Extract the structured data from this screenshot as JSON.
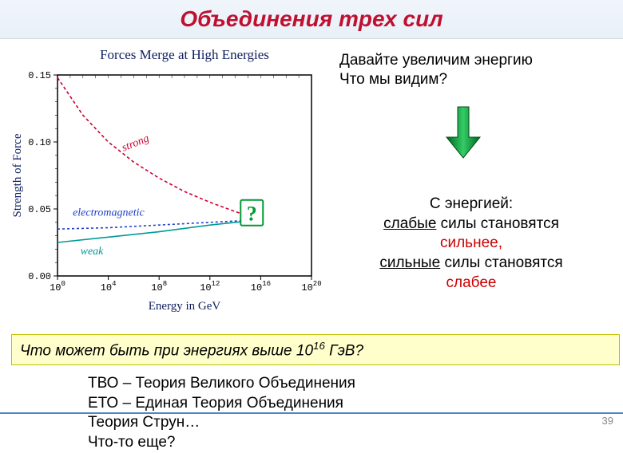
{
  "slide": {
    "title": "Объединения трех сил",
    "number": "39"
  },
  "chart": {
    "title": "Forces Merge at High Energies",
    "title_fontsize": 17,
    "title_color": "#102060",
    "ylabel": "Strength of Force",
    "xlabel": "Energy in GeV",
    "axis_font": "Georgia, serif",
    "ylim": [
      0.0,
      0.15
    ],
    "yticks": [
      "0.00",
      "0.05",
      "0.10",
      "0.15"
    ],
    "xticks_exp": [
      0,
      4,
      8,
      12,
      16,
      20
    ],
    "plot_bg": "#ffffff",
    "axis_color": "#000000",
    "series": {
      "strong": {
        "label": "strong",
        "color": "#cc0033",
        "dash": "4,3",
        "width": 1.6,
        "points": [
          [
            0,
            0.148
          ],
          [
            2,
            0.12
          ],
          [
            4,
            0.1
          ],
          [
            6,
            0.085
          ],
          [
            8,
            0.073
          ],
          [
            10,
            0.063
          ],
          [
            12,
            0.055
          ],
          [
            14,
            0.048
          ],
          [
            16,
            0.042
          ]
        ]
      },
      "electromagnetic": {
        "label": "electromagnetic",
        "color": "#2040cc",
        "dash": "3,3",
        "width": 1.6,
        "points": [
          [
            0,
            0.035
          ],
          [
            4,
            0.036
          ],
          [
            8,
            0.038
          ],
          [
            12,
            0.04
          ],
          [
            16,
            0.042
          ]
        ]
      },
      "weak": {
        "label": "weak",
        "color": "#009999",
        "dash": "none",
        "width": 1.6,
        "points": [
          [
            0,
            0.025
          ],
          [
            4,
            0.029
          ],
          [
            8,
            0.033
          ],
          [
            12,
            0.038
          ],
          [
            16,
            0.042
          ]
        ]
      }
    },
    "question_mark_color": "#009933",
    "label_fontsize": 14
  },
  "right": {
    "line1": "Давайте увеличим энергию",
    "line2": "Что мы видим?",
    "arrow_color": "#009933"
  },
  "energy": {
    "l1": "С энергией:",
    "l2a": "слабые",
    "l2b": " силы становятся",
    "l3": "сильнее,",
    "l4a": "сильные",
    "l4b": " силы становятся",
    "l5": "слабее"
  },
  "yellow": {
    "pre": "Что может быть при энергиях выше 10",
    "exp": "16",
    "post": " ГэВ?"
  },
  "theories": {
    "l1": "ТВО – Теория Великого Объединения",
    "l2": "ЕТО – Единая Теория Объединения",
    "l3": "Теория Струн…",
    "l4": "Что-то еще?"
  }
}
